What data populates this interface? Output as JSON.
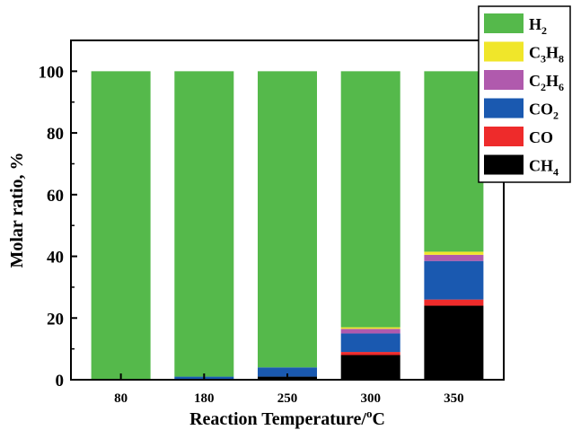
{
  "chart_data": {
    "type": "bar",
    "stacked": true,
    "xlabel": "Reaction Temperature/",
    "xlabel_sup": "o",
    "xlabel_unit": "C",
    "ylabel": "Molar ratio, %",
    "ylim": [
      0,
      110
    ],
    "yticks": [
      "0",
      "20",
      "40",
      "60",
      "80",
      "100"
    ],
    "categories": [
      "80",
      "180",
      "250",
      "300",
      "350"
    ],
    "legend_position": "top-right",
    "series": [
      {
        "key": "CH4",
        "color": "#000000",
        "values": [
          0,
          0,
          1,
          8,
          24
        ]
      },
      {
        "key": "CO",
        "color": "#ee2b2b",
        "values": [
          0,
          0,
          0,
          1,
          2
        ]
      },
      {
        "key": "CO2",
        "color": "#1a59b0",
        "values": [
          0,
          1,
          3,
          6,
          12.5
        ]
      },
      {
        "key": "C2H6",
        "color": "#b05aad",
        "values": [
          0,
          0,
          0,
          1.5,
          2
        ]
      },
      {
        "key": "C3H8",
        "color": "#f0e62a",
        "values": [
          0,
          0,
          0,
          0.5,
          1
        ]
      },
      {
        "key": "H2",
        "color": "#55b94b",
        "values": [
          100,
          99,
          96,
          83,
          58.5
        ]
      }
    ],
    "legend": [
      {
        "key": "H2",
        "base": "H",
        "sub": "2",
        "base2": "",
        "sub2": ""
      },
      {
        "key": "C3H8",
        "base": "C",
        "sub": "3",
        "base2": "H",
        "sub2": "8"
      },
      {
        "key": "C2H6",
        "base": "C",
        "sub": "2",
        "base2": "H",
        "sub2": "6"
      },
      {
        "key": "CO2",
        "base": "CO",
        "sub": "2",
        "base2": "",
        "sub2": ""
      },
      {
        "key": "CO",
        "base": "CO",
        "sub": "",
        "base2": "",
        "sub2": ""
      },
      {
        "key": "CH4",
        "base": "CH",
        "sub": "4",
        "base2": "",
        "sub2": ""
      }
    ]
  }
}
